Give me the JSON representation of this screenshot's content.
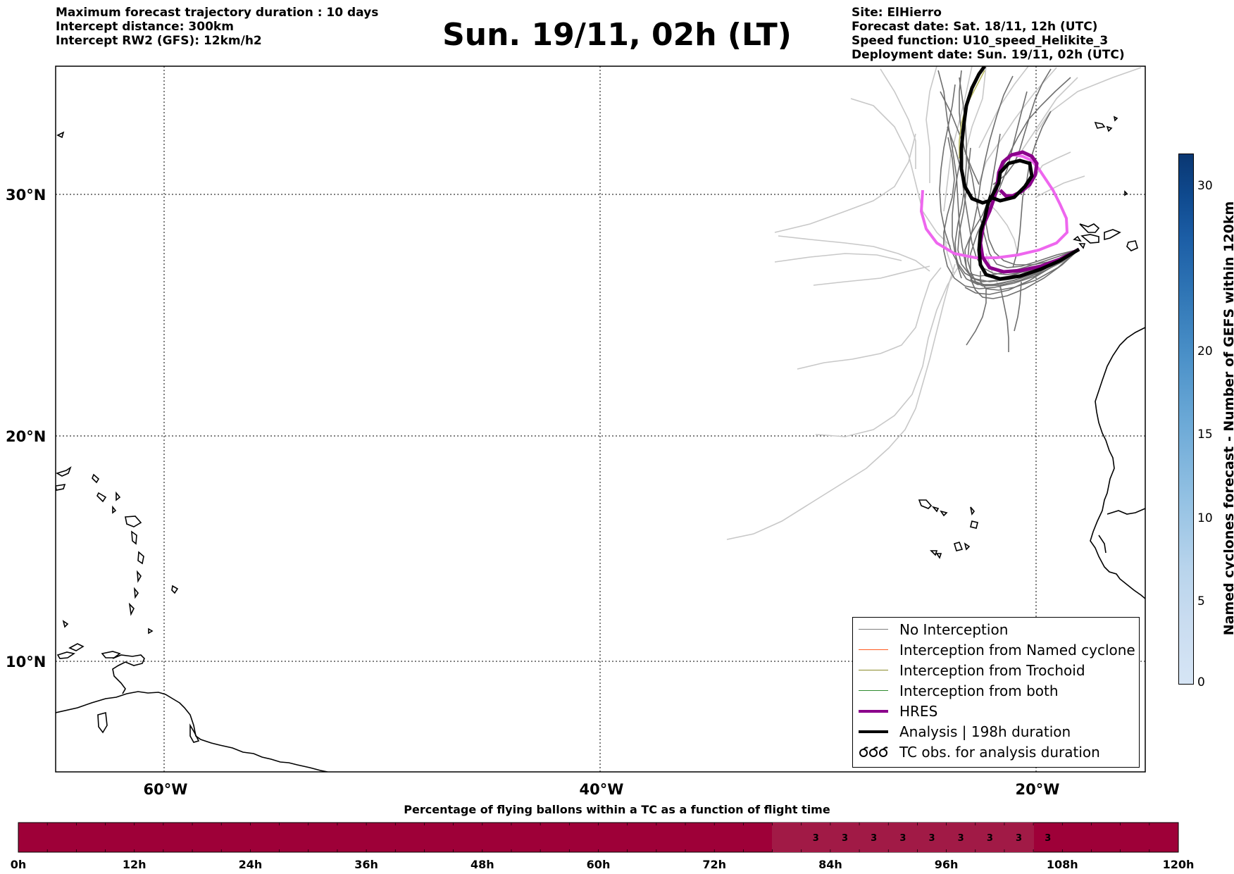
{
  "header_left": [
    "Maximum forecast trajectory duration : 10 days",
    "Intercept distance: 300km",
    "Intercept RW2 (GFS):  12km/h2"
  ],
  "title": "Sun. 19/11, 02h (LT)",
  "header_right": [
    "Site: ElHierro",
    "Forecast date: Sat. 18/11, 12h (UTC)",
    "Speed function: U10_speed_Helikite_3",
    "Deployment date: Sun. 19/11, 02h (UTC)"
  ],
  "map": {
    "lat_labels": [
      "30°N",
      "20°N",
      "10°N"
    ],
    "lon_labels": [
      "60°W",
      "40°W",
      "20°W"
    ],
    "gridlines": "dotted"
  },
  "legend": [
    {
      "label": "No Interception",
      "color": "#7f7f7f",
      "style": "thin"
    },
    {
      "label": "Interception from Named cyclone",
      "color": "#ff5a1f",
      "style": "thin"
    },
    {
      "label": "Interception from Trochoid",
      "color": "#8a8a2a",
      "style": "thin"
    },
    {
      "label": "Interception from both",
      "color": "#2e8b2e",
      "style": "thin"
    },
    {
      "label": "HRES",
      "color": "#8b008b",
      "style": "thick"
    },
    {
      "label": "Analysis | 198h duration",
      "color": "#000000",
      "style": "thick"
    },
    {
      "label": "TC obs. for analysis duration",
      "color": "#000000",
      "style": "symbol"
    }
  ],
  "colorbar": {
    "label": "Named cyclones forecast - Number of GEFS within 120km",
    "ticks": [
      "0",
      "5",
      "10",
      "15",
      "20",
      "30"
    ],
    "colors": [
      "#d6e5f5",
      "#b8d4ec",
      "#93c1e3",
      "#6aa8d6",
      "#4a90c8",
      "#2f75b5",
      "#1c5ea6",
      "#0f4a8f",
      "#0a3772"
    ]
  },
  "progress_bar": {
    "title": "Percentage of flying ballons within a TC as a function of flight time",
    "bar_color": "#9e0038",
    "tick_labels": [
      "0h",
      "12h",
      "24h",
      "36h",
      "48h",
      "60h",
      "72h",
      "84h",
      "96h",
      "108h",
      "120h"
    ],
    "cell_values": [
      "3",
      "3",
      "3",
      "3",
      "3",
      "3",
      "3",
      "3",
      "3"
    ]
  }
}
